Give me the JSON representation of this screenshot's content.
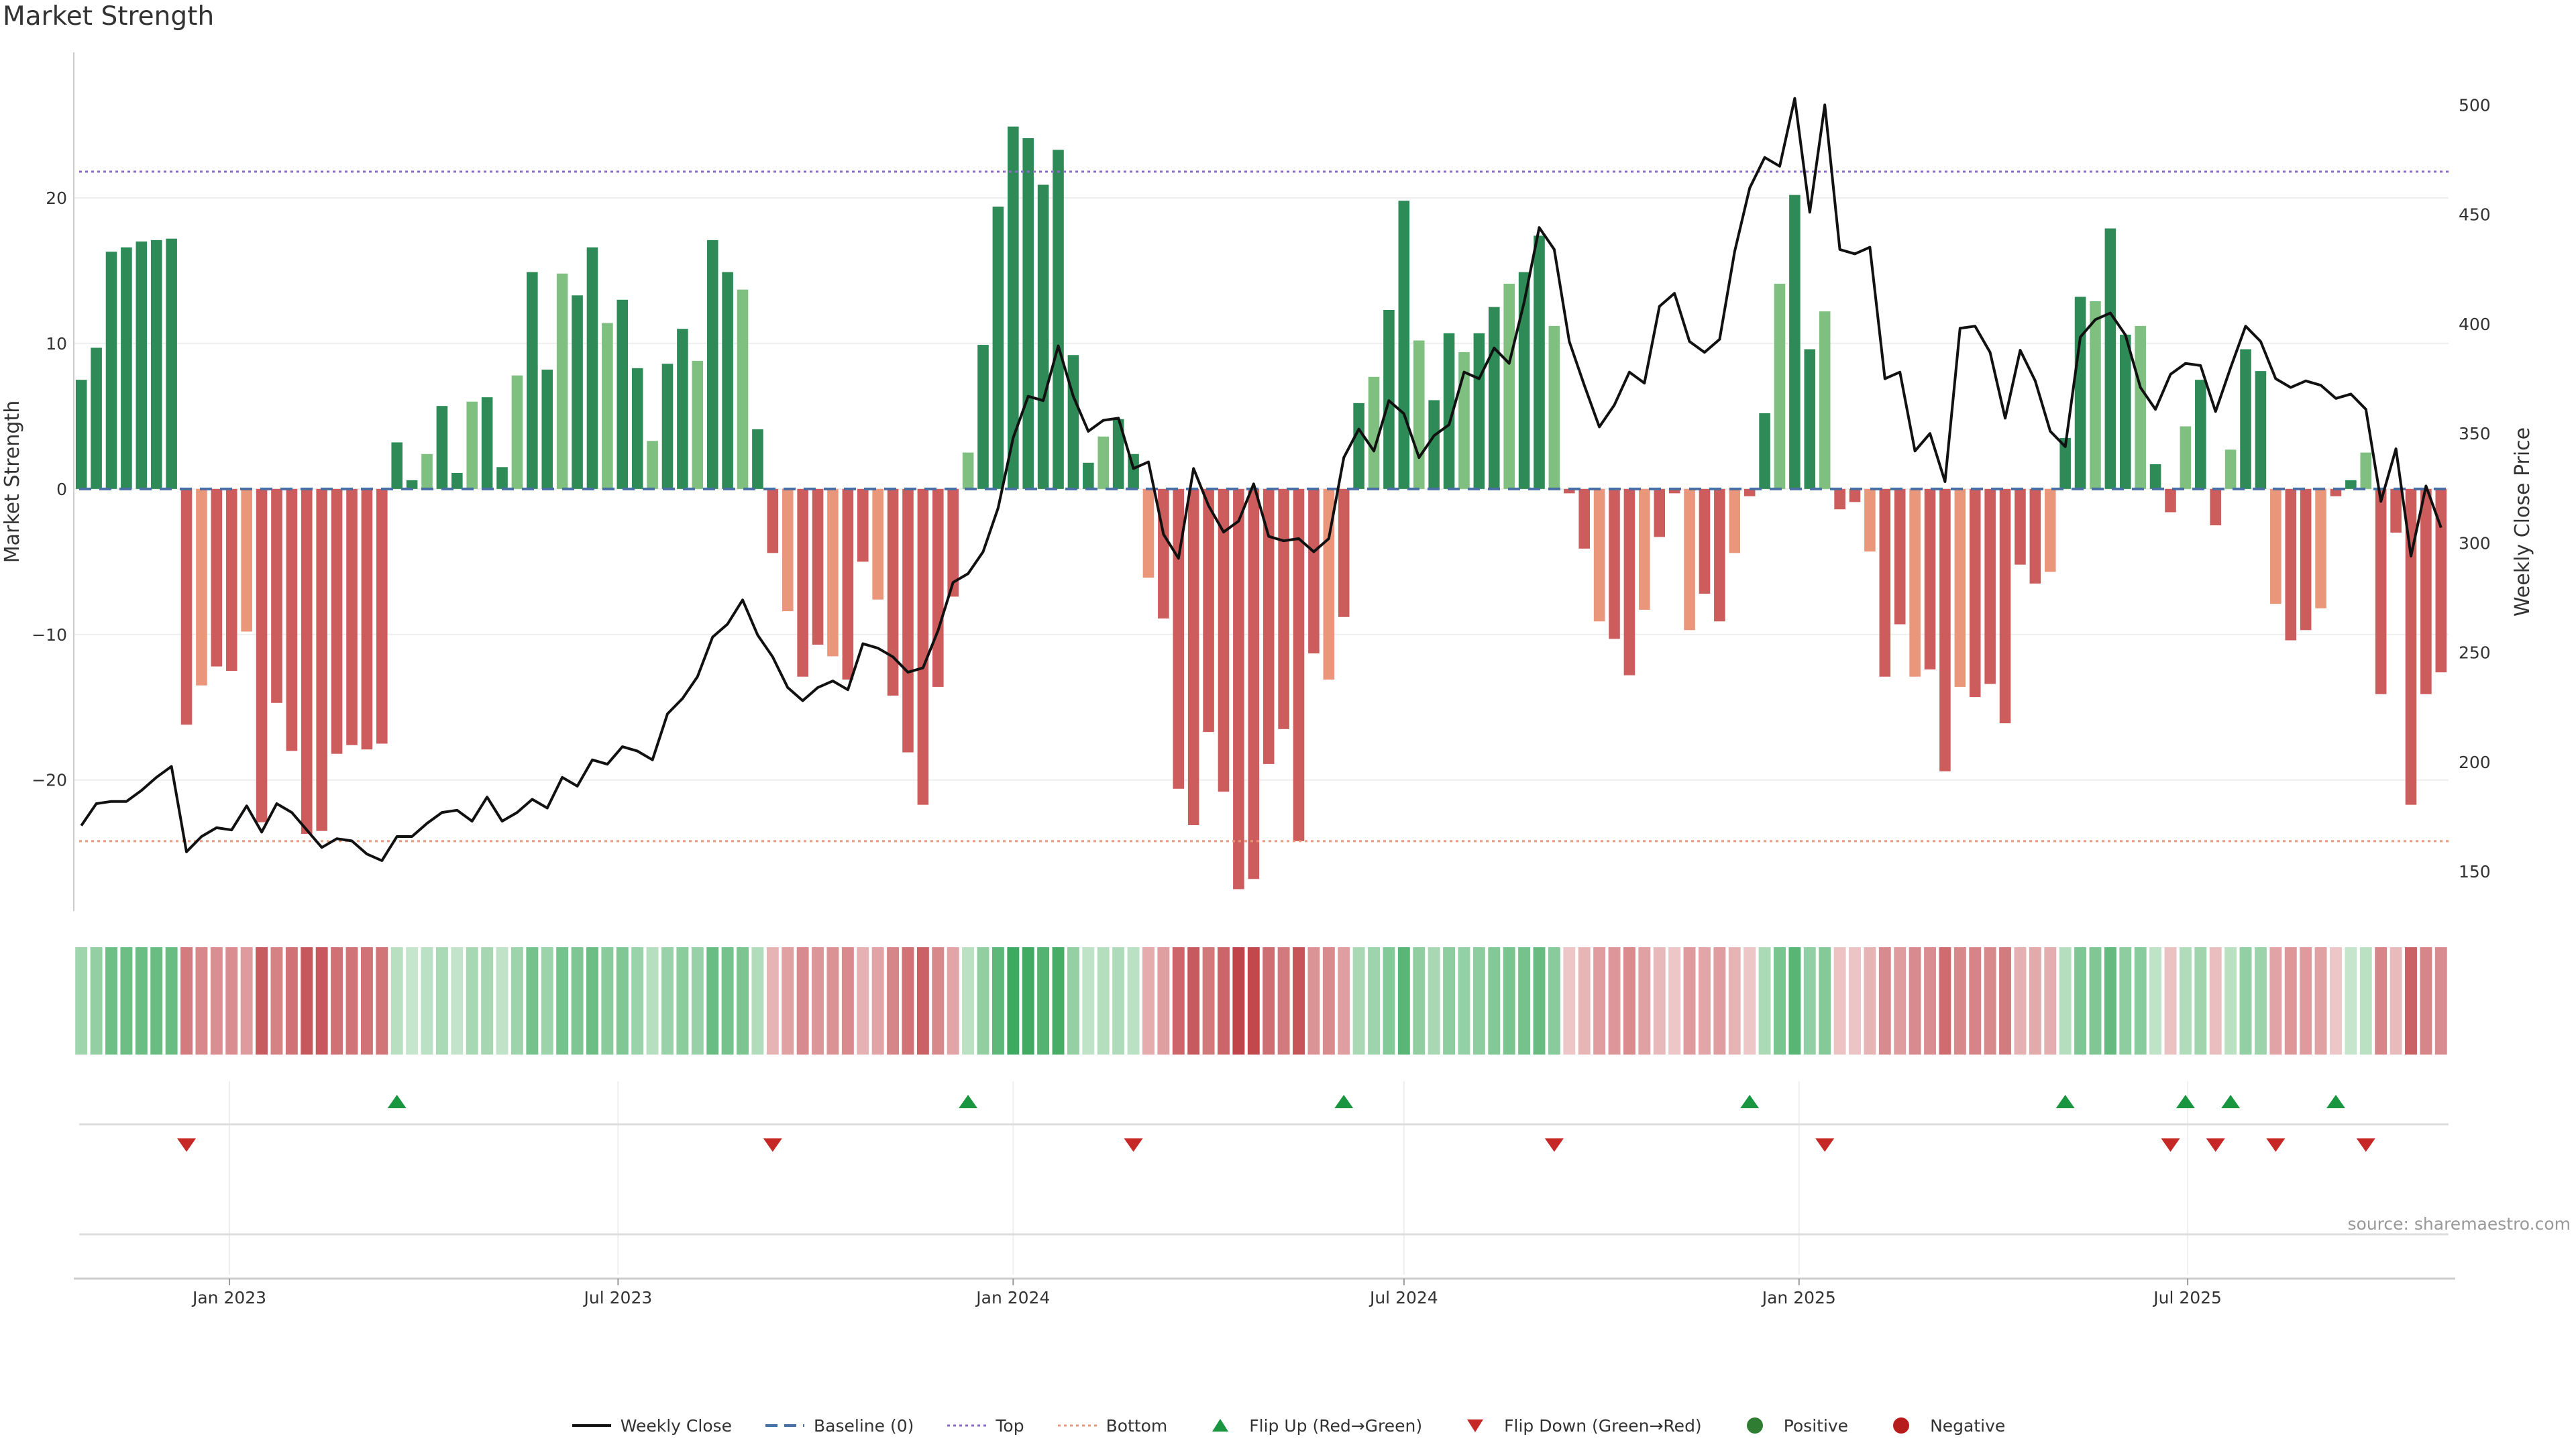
{
  "chart_data": {
    "type": "bar",
    "title": "Market Strength",
    "ylabel_left": "Market Strength",
    "ylabel_right": "Weekly Close Price",
    "y_left_range": [
      -29,
      30
    ],
    "y_left_ticks": [
      20,
      10,
      0,
      -10,
      -20
    ],
    "y_left_tick_labels": [
      "20",
      "10",
      "0",
      "−10",
      "−20"
    ],
    "y_right_range": [
      132,
      524
    ],
    "y_right_ticks": [
      150,
      200,
      250,
      300,
      350,
      400,
      450,
      500
    ],
    "x_ticks": [
      {
        "label": "Jan 2023",
        "date": "2023-01-01"
      },
      {
        "label": "Jul 2023",
        "date": "2023-07-01"
      },
      {
        "label": "Jan 2024",
        "date": "2024-01-01"
      },
      {
        "label": "Jul 2024",
        "date": "2024-07-01"
      },
      {
        "label": "Jan 2025",
        "date": "2025-01-01"
      },
      {
        "label": "Jul 2025",
        "date": "2025-07-01"
      }
    ],
    "top_line": 21.8,
    "bottom_line": -24.2,
    "baseline": 0,
    "grid": true,
    "legend_position": "bottom-center",
    "weeks": [
      "2022-10-24",
      "2022-10-31",
      "2022-11-07",
      "2022-11-14",
      "2022-11-21",
      "2022-11-28",
      "2022-12-05",
      "2022-12-12",
      "2022-12-19",
      "2022-12-26",
      "2023-01-02",
      "2023-01-09",
      "2023-01-16",
      "2023-01-23",
      "2023-01-30",
      "2023-02-06",
      "2023-02-13",
      "2023-02-20",
      "2023-02-27",
      "2023-03-06",
      "2023-03-13",
      "2023-03-20",
      "2023-03-27",
      "2023-04-03",
      "2023-04-10",
      "2023-04-17",
      "2023-04-24",
      "2023-05-01",
      "2023-05-08",
      "2023-05-15",
      "2023-05-22",
      "2023-05-29",
      "2023-06-05",
      "2023-06-12",
      "2023-06-19",
      "2023-06-26",
      "2023-07-03",
      "2023-07-10",
      "2023-07-17",
      "2023-07-24",
      "2023-07-31",
      "2023-08-07",
      "2023-08-14",
      "2023-08-21",
      "2023-08-28",
      "2023-09-04",
      "2023-09-11",
      "2023-09-18",
      "2023-09-25",
      "2023-10-02",
      "2023-10-09",
      "2023-10-16",
      "2023-10-23",
      "2023-10-30",
      "2023-11-06",
      "2023-11-13",
      "2023-11-20",
      "2023-11-27",
      "2023-12-04",
      "2023-12-11",
      "2023-12-18",
      "2023-12-25",
      "2024-01-01",
      "2024-01-08",
      "2024-01-15",
      "2024-01-22",
      "2024-01-29",
      "2024-02-05",
      "2024-02-12",
      "2024-02-19",
      "2024-02-26",
      "2024-03-04",
      "2024-03-11",
      "2024-03-18",
      "2024-03-25",
      "2024-04-01",
      "2024-04-08",
      "2024-04-15",
      "2024-04-22",
      "2024-04-29",
      "2024-05-06",
      "2024-05-13",
      "2024-05-20",
      "2024-05-27",
      "2024-06-03",
      "2024-06-10",
      "2024-06-17",
      "2024-06-24",
      "2024-07-01",
      "2024-07-08",
      "2024-07-15",
      "2024-07-22",
      "2024-07-29",
      "2024-08-05",
      "2024-08-12",
      "2024-08-19",
      "2024-08-26",
      "2024-09-02",
      "2024-09-09",
      "2024-09-16",
      "2024-09-23",
      "2024-09-30",
      "2024-10-07",
      "2024-10-14",
      "2024-10-21",
      "2024-10-28",
      "2024-11-04",
      "2024-11-11",
      "2024-11-18",
      "2024-11-25",
      "2024-12-02",
      "2024-12-09",
      "2024-12-16",
      "2024-12-23",
      "2024-12-30",
      "2025-01-06",
      "2025-01-13",
      "2025-01-20",
      "2025-01-27",
      "2025-02-03",
      "2025-02-10",
      "2025-02-17",
      "2025-02-24",
      "2025-03-03",
      "2025-03-10",
      "2025-03-17",
      "2025-03-24",
      "2025-03-31",
      "2025-04-07",
      "2025-04-14",
      "2025-04-21",
      "2025-04-28",
      "2025-05-05",
      "2025-05-12",
      "2025-05-19",
      "2025-05-26",
      "2025-06-02",
      "2025-06-09",
      "2025-06-16",
      "2025-06-23",
      "2025-06-30",
      "2025-07-07",
      "2025-07-14",
      "2025-07-21",
      "2025-07-28",
      "2025-08-04",
      "2025-08-11",
      "2025-08-18",
      "2025-08-25",
      "2025-09-01",
      "2025-09-08",
      "2025-09-15",
      "2025-09-22",
      "2025-09-29",
      "2025-10-06",
      "2025-10-13",
      "2025-10-20",
      "2025-10-27"
    ],
    "strength": [
      7.5,
      9.7,
      16.3,
      16.6,
      17.0,
      17.1,
      17.2,
      -16.2,
      -13.5,
      -12.2,
      -12.5,
      -9.8,
      -22.9,
      -14.7,
      -18.0,
      -23.7,
      -23.5,
      -18.2,
      -17.6,
      -17.9,
      -17.5,
      3.2,
      0.6,
      2.4,
      5.7,
      1.1,
      6.0,
      6.3,
      1.5,
      7.8,
      14.9,
      8.2,
      14.8,
      13.3,
      16.6,
      11.4,
      13.0,
      8.3,
      3.3,
      8.6,
      11.0,
      8.8,
      17.1,
      14.9,
      13.7,
      4.1,
      -4.4,
      -8.4,
      -12.9,
      -10.7,
      -11.5,
      -13.1,
      -5.0,
      -7.6,
      -14.2,
      -18.1,
      -21.7,
      -13.6,
      -7.4,
      2.5,
      9.9,
      19.4,
      24.9,
      24.1,
      20.9,
      23.3,
      9.2,
      1.8,
      3.6,
      4.8,
      2.4,
      -6.1,
      -8.9,
      -20.6,
      -23.1,
      -16.7,
      -20.8,
      -27.5,
      -26.8,
      -18.9,
      -16.5,
      -24.2,
      -11.3,
      -13.1,
      -8.8,
      5.9,
      7.7,
      12.3,
      19.8,
      10.2,
      6.1,
      10.7,
      9.4,
      10.7,
      12.5,
      14.1,
      14.9,
      17.4,
      11.2,
      -0.3,
      -4.1,
      -9.1,
      -10.3,
      -12.8,
      -8.3,
      -3.3,
      -0.3,
      -9.7,
      -7.2,
      -9.1,
      -4.4,
      -0.5,
      5.2,
      14.1,
      20.2,
      9.6,
      12.2,
      -1.4,
      -0.9,
      -4.3,
      -12.9,
      -9.3,
      -12.9,
      -12.4,
      -19.4,
      -13.6,
      -14.3,
      -13.4,
      -16.1,
      -5.2,
      -6.5,
      -5.7,
      3.5,
      13.2,
      12.9,
      17.9,
      10.6,
      11.2,
      1.7,
      -1.6,
      4.3,
      7.5,
      -2.5,
      2.7,
      9.6,
      8.1,
      -7.9,
      -10.4,
      -9.7,
      -8.2,
      -0.5,
      0.6,
      2.5,
      -14.1,
      -3.0,
      -21.7,
      -14.1,
      -12.6
    ],
    "weekly_close": [
      171,
      181,
      182,
      182,
      187,
      193,
      198,
      159,
      166,
      170,
      169,
      180,
      168,
      181,
      177,
      169,
      161,
      165,
      164,
      158,
      155,
      166,
      166,
      172,
      177,
      178,
      173,
      184,
      173,
      177,
      183,
      179,
      193,
      189,
      201,
      199,
      207,
      205,
      201,
      222,
      229,
      239,
      257,
      263,
      274,
      258,
      248,
      234,
      228,
      234,
      237,
      233,
      254,
      252,
      248,
      241,
      243,
      260,
      282,
      286,
      296,
      316,
      348,
      367,
      365,
      390,
      367,
      351,
      356,
      357,
      334,
      337,
      304,
      293,
      334,
      317,
      305,
      310,
      327,
      303,
      301,
      302,
      296,
      302,
      339,
      352,
      342,
      365,
      359,
      339,
      349,
      354,
      378,
      375,
      389,
      382,
      410,
      444,
      434,
      392,
      372,
      353,
      363,
      378,
      373,
      408,
      414,
      392,
      387,
      393,
      433,
      462,
      476,
      472,
      503,
      451,
      500,
      434,
      432,
      435,
      375,
      378,
      342,
      350,
      328,
      398,
      399,
      387,
      357,
      388,
      374,
      351,
      344,
      394,
      402,
      405,
      395,
      371,
      361,
      377,
      382,
      381,
      360,
      380,
      399,
      392,
      375,
      371,
      374,
      372,
      366,
      368,
      361,
      319,
      343,
      294,
      326,
      307
    ],
    "flip_up_weeks": [
      21,
      59,
      84,
      111,
      132,
      140,
      143,
      150
    ],
    "flip_down_weeks": [
      7,
      46,
      70,
      98,
      116,
      139,
      142,
      146,
      152
    ],
    "colors": {
      "strong_positive": "#2e8b57",
      "weak_positive": "#7fbf7f",
      "strong_negative": "#cd5c5c",
      "weak_negative": "#e9967a",
      "close_line": "#111111",
      "baseline": "#4a6fa5",
      "top_line": "#8c6bc8",
      "bottom_line": "#e9967a",
      "flip_up": "#1a9641",
      "flip_down": "#c62828",
      "positive": "#2e7d32",
      "negative": "#b71c1c"
    }
  },
  "page": {
    "title": "Market Strength",
    "source": "source: sharemaestro.com"
  },
  "legend": {
    "items": [
      {
        "key": "weekly_close",
        "label": "Weekly Close",
        "symbol": "solid-line"
      },
      {
        "key": "baseline",
        "label": "Baseline (0)",
        "symbol": "dashed-line"
      },
      {
        "key": "top",
        "label": "Top",
        "symbol": "dotted-line"
      },
      {
        "key": "bottom",
        "label": "Bottom",
        "symbol": "dotted-line"
      },
      {
        "key": "flip_up",
        "label": "Flip Up (Red→Green)",
        "symbol": "triangle-up"
      },
      {
        "key": "flip_down",
        "label": "Flip Down (Green→Red)",
        "symbol": "triangle-down"
      },
      {
        "key": "positive",
        "label": "Positive",
        "symbol": "circle"
      },
      {
        "key": "negative",
        "label": "Negative",
        "symbol": "circle"
      }
    ]
  }
}
